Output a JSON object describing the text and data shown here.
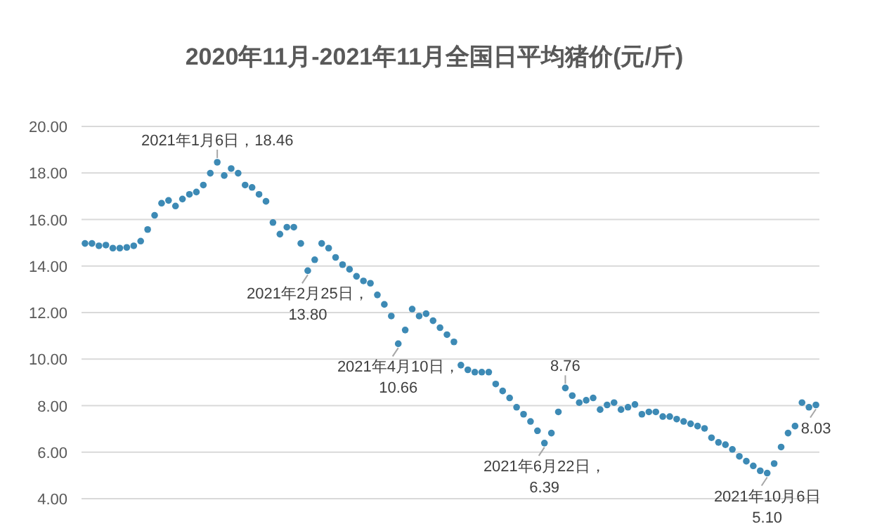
{
  "chart_data": {
    "type": "scatter",
    "title": "2020年11月-2021年11月全国日平均猪价(元/斤)",
    "categories": [
      null,
      null,
      null,
      null,
      null,
      null,
      null,
      null,
      null,
      null,
      null,
      null,
      null,
      null,
      null,
      null,
      null,
      null,
      null,
      null,
      null,
      null,
      null,
      null,
      null,
      null,
      null,
      null,
      null,
      null,
      null,
      null,
      null,
      null,
      null,
      null,
      null,
      null,
      null,
      null,
      null,
      null,
      null,
      null,
      null,
      null,
      null,
      null,
      null,
      null,
      null,
      null,
      null,
      null,
      null,
      null,
      null,
      null,
      null,
      null,
      null,
      null,
      null,
      null,
      null,
      null,
      null,
      null,
      null,
      null,
      null,
      null,
      null,
      null,
      null,
      null,
      null,
      null,
      null,
      null,
      null,
      null,
      null,
      null,
      null,
      null,
      null,
      null,
      null,
      null,
      null,
      null,
      null,
      null,
      null,
      null,
      null,
      null,
      null,
      null,
      null,
      null,
      null,
      null,
      null,
      null
    ],
    "series": [
      {
        "color": "#3d8ab5",
        "values": [
          14.97,
          14.97,
          14.87,
          14.9,
          14.77,
          14.77,
          14.8,
          14.87,
          15.07,
          15.57,
          16.18,
          16.7,
          16.82,
          16.58,
          16.88,
          17.08,
          17.18,
          17.48,
          17.99,
          18.46,
          17.89,
          18.19,
          17.99,
          17.48,
          17.38,
          17.08,
          16.78,
          15.87,
          15.37,
          15.67,
          15.67,
          14.97,
          13.8,
          14.27,
          14.97,
          14.77,
          14.37,
          14.06,
          13.86,
          13.56,
          13.36,
          13.26,
          12.76,
          12.35,
          11.85,
          10.66,
          11.25,
          12.15,
          11.85,
          11.95,
          11.65,
          11.35,
          11.05,
          10.74,
          9.74,
          9.54,
          9.44,
          9.44,
          9.44,
          8.93,
          8.63,
          8.33,
          7.93,
          7.63,
          7.32,
          6.92,
          6.39,
          6.82,
          7.73,
          8.76,
          8.43,
          8.13,
          8.23,
          8.33,
          7.83,
          8.03,
          8.13,
          7.83,
          7.93,
          8.05,
          7.63,
          7.73,
          7.73,
          7.53,
          7.53,
          7.42,
          7.32,
          7.22,
          7.12,
          7.02,
          6.62,
          6.42,
          6.32,
          6.12,
          5.82,
          5.61,
          5.41,
          5.2,
          5.1,
          5.51,
          6.22,
          6.82,
          7.12,
          8.13,
          7.93,
          8.03
        ]
      }
    ],
    "ylim": [
      4,
      20
    ],
    "yticks": [
      {
        "value": 4,
        "label": "4.00"
      },
      {
        "value": 6,
        "label": "6.00"
      },
      {
        "value": 8,
        "label": "8.00"
      },
      {
        "value": 10,
        "label": "10.00"
      },
      {
        "value": 12,
        "label": "12.00"
      },
      {
        "value": 14,
        "label": "14.00"
      },
      {
        "value": 16,
        "label": "16.00"
      },
      {
        "value": 18,
        "label": "18.00"
      },
      {
        "value": 20,
        "label": "20.00"
      }
    ],
    "grid": "y",
    "marker": "circle",
    "annotations": [
      {
        "text": "2021年1月6日，18.46",
        "y": 18.46
      },
      {
        "text": "2021年2月25日，\n13.80",
        "y": 13.8
      },
      {
        "text": "2021年4月10日，\n10.66",
        "y": 10.66
      },
      {
        "text": "2021年6月22日，\n6.39",
        "y": 6.39
      },
      {
        "text": "8.76",
        "y": 8.76
      },
      {
        "text": "2021年10月6日\n5.10",
        "y": 5.1
      },
      {
        "text": "8.03",
        "y": 8.03
      }
    ]
  }
}
